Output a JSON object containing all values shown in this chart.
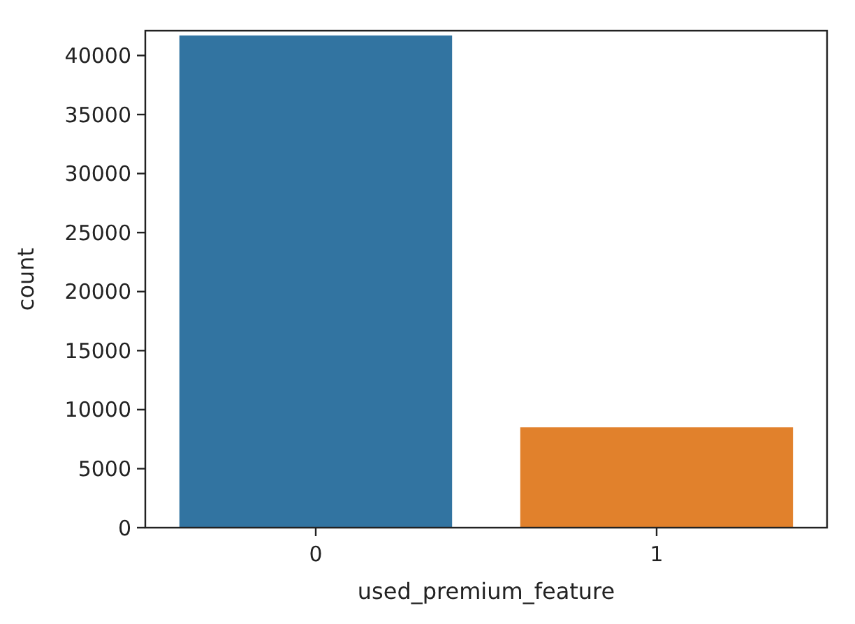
{
  "chart_data": {
    "type": "bar",
    "xlabel": "used_premium_feature",
    "ylabel": "count",
    "categories": [
      "0",
      "1"
    ],
    "values": [
      41700,
      8500
    ],
    "colors": [
      "#3274a1",
      "#e1812c"
    ],
    "ylim": [
      0,
      42100
    ],
    "yticks": [
      0,
      5000,
      10000,
      15000,
      20000,
      25000,
      30000,
      35000,
      40000
    ],
    "grid": false
  }
}
